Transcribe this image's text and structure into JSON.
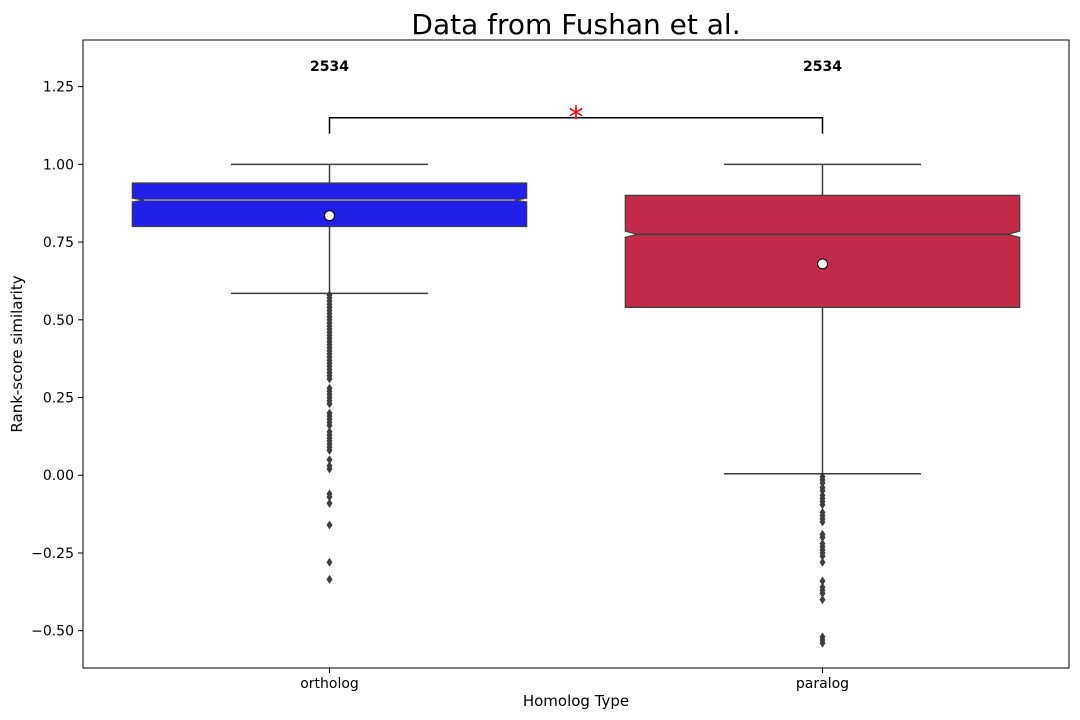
{
  "chart_data": {
    "type": "box",
    "title": "Data from Fushan et al.",
    "xlabel": "Homolog Type",
    "ylabel": "Rank-score similarity",
    "ylim": [
      -0.62,
      1.4
    ],
    "yticks": [
      -0.5,
      -0.25,
      0.0,
      0.25,
      0.5,
      0.75,
      1.0,
      1.25
    ],
    "ytick_labels": [
      "−0.50",
      "−0.25",
      "0.00",
      "0.25",
      "0.50",
      "0.75",
      "1.00",
      "1.25"
    ],
    "notched": true,
    "mean_marker": "white circle",
    "grid": false,
    "categories": [
      "ortholog",
      "paralog"
    ],
    "counts": [
      "2534",
      "2534"
    ],
    "colors": [
      "#2020e8",
      "#c42b4a"
    ],
    "boxes": [
      {
        "category": "ortholog",
        "whisker_low": 0.585,
        "q1": 0.8,
        "median": 0.885,
        "q3": 0.94,
        "whisker_high": 1.0,
        "notch_low": 0.879,
        "notch_high": 0.891,
        "mean": 0.835,
        "outliers": [
          0.58,
          0.57,
          0.56,
          0.55,
          0.54,
          0.53,
          0.52,
          0.51,
          0.5,
          0.49,
          0.48,
          0.47,
          0.46,
          0.45,
          0.44,
          0.43,
          0.42,
          0.41,
          0.4,
          0.39,
          0.38,
          0.37,
          0.36,
          0.35,
          0.34,
          0.33,
          0.32,
          0.31,
          0.28,
          0.27,
          0.26,
          0.25,
          0.24,
          0.23,
          0.2,
          0.19,
          0.18,
          0.17,
          0.16,
          0.14,
          0.13,
          0.12,
          0.11,
          0.1,
          0.09,
          0.08,
          0.05,
          0.03,
          0.02,
          -0.06,
          -0.07,
          -0.09,
          -0.16,
          -0.28,
          -0.335
        ]
      },
      {
        "category": "paralog",
        "whisker_low": 0.005,
        "q1": 0.54,
        "median": 0.775,
        "q3": 0.9,
        "whisker_high": 1.0,
        "notch_low": 0.765,
        "notch_high": 0.785,
        "mean": 0.68,
        "outliers": [
          -0.005,
          -0.015,
          -0.025,
          -0.04,
          -0.05,
          -0.065,
          -0.075,
          -0.085,
          -0.095,
          -0.12,
          -0.13,
          -0.14,
          -0.15,
          -0.19,
          -0.2,
          -0.22,
          -0.23,
          -0.24,
          -0.25,
          -0.26,
          -0.28,
          -0.34,
          -0.36,
          -0.37,
          -0.38,
          -0.4,
          -0.52,
          -0.53,
          -0.54
        ]
      }
    ],
    "annotations": [
      {
        "type": "significance-bracket",
        "between": [
          "ortholog",
          "paralog"
        ],
        "y": 1.15,
        "label": "*",
        "label_color": "#ff0000"
      }
    ]
  }
}
